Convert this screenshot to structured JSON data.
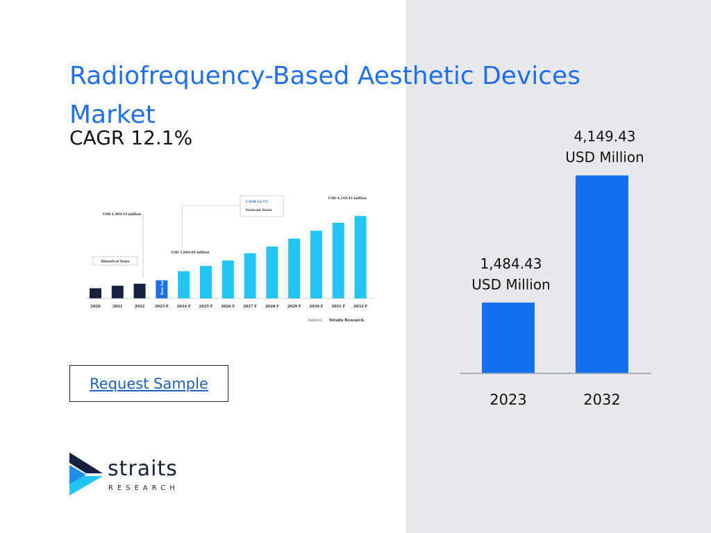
{
  "title": "Radiofrequency-Based Aesthetic Devices Market",
  "cagr": "CAGR 12.1%",
  "request_button": "Request Sample",
  "logo": {
    "word": "straits",
    "sub": "RESEARCH"
  },
  "colors": {
    "title": "#1f6ef0",
    "bar": "#1570ef",
    "panel": "#e7e8eb",
    "historical": "#16213f",
    "base_year": "#1e6fe0",
    "forecast": "#22c5f2"
  },
  "chart_data": [
    {
      "type": "bar",
      "categories": [
        "2023",
        "2032"
      ],
      "values": [
        1484.43,
        4149.43
      ],
      "value_labels": [
        "1,484.43",
        "4,149.43"
      ],
      "unit": "USD Million",
      "ylim": [
        0,
        4800
      ]
    },
    {
      "type": "bar",
      "categories": [
        "2020",
        "2021",
        "2022",
        "2023 E",
        "2024 F",
        "2025 F",
        "2026 F",
        "2027 F",
        "2028 F",
        "2029 F",
        "2030 F",
        "2031 F",
        "2032 F"
      ],
      "values": [
        560,
        700,
        810,
        1000,
        1500,
        1790,
        2090,
        2490,
        2860,
        3300,
        3730,
        4170,
        4540
      ],
      "bar_groups": [
        "historical",
        "historical",
        "historical",
        "base",
        "forecast",
        "forecast",
        "forecast",
        "forecast",
        "forecast",
        "forecast",
        "forecast",
        "forecast",
        "forecast"
      ],
      "ylim": [
        0,
        5200
      ],
      "annotations": {
        "start": "USD 1,484.43 million",
        "base": "USD 1,664.04 million",
        "end": "USD 4,149.43 million",
        "cagr": "CAGR 12.1%",
        "forecast": "Forecast Years",
        "historical": "Historical Years",
        "base_year": "Base Year",
        "source_label": "Source:",
        "source": "Straits Research"
      }
    }
  ]
}
